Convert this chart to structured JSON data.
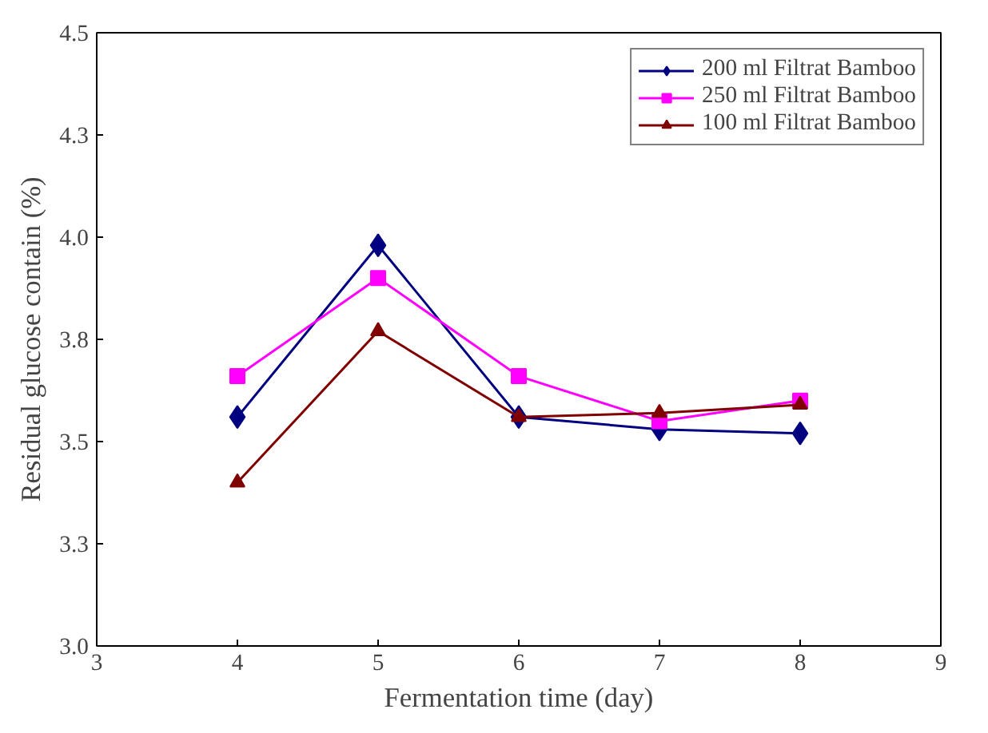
{
  "chart_data": {
    "type": "line",
    "xlabel": "Fermentation time (day)",
    "ylabel": "Residual glucose contain (%)",
    "x": [
      4,
      5,
      6,
      7,
      8
    ],
    "series": [
      {
        "name": "200 ml Filtrat Bamboo",
        "color": "#000080",
        "marker": "diamond",
        "values": [
          3.56,
          3.98,
          3.56,
          3.53,
          3.52
        ]
      },
      {
        "name": "250 ml Filtrat Bamboo",
        "color": "#ff00ff",
        "marker": "square",
        "values": [
          3.66,
          3.9,
          3.66,
          3.55,
          3.6
        ]
      },
      {
        "name": "100 ml Filtrat Bamboo",
        "color": "#800000",
        "marker": "triangle",
        "values": [
          3.4,
          3.77,
          3.56,
          3.57,
          3.59
        ]
      }
    ],
    "xlim": [
      3,
      9
    ],
    "xticks": [
      3,
      4,
      5,
      6,
      7,
      8,
      9
    ],
    "ylim": [
      3.0,
      4.5
    ],
    "yticks": [
      {
        "value": 3.0,
        "label": "3.0"
      },
      {
        "value": 3.25,
        "label": "3.3"
      },
      {
        "value": 3.5,
        "label": "3.5"
      },
      {
        "value": 3.75,
        "label": "3.8"
      },
      {
        "value": 4.0,
        "label": "4.0"
      },
      {
        "value": 4.25,
        "label": "4.3"
      },
      {
        "value": 4.5,
        "label": "4.5"
      }
    ],
    "grid": false,
    "legend": "top right",
    "line_style": "solid"
  }
}
